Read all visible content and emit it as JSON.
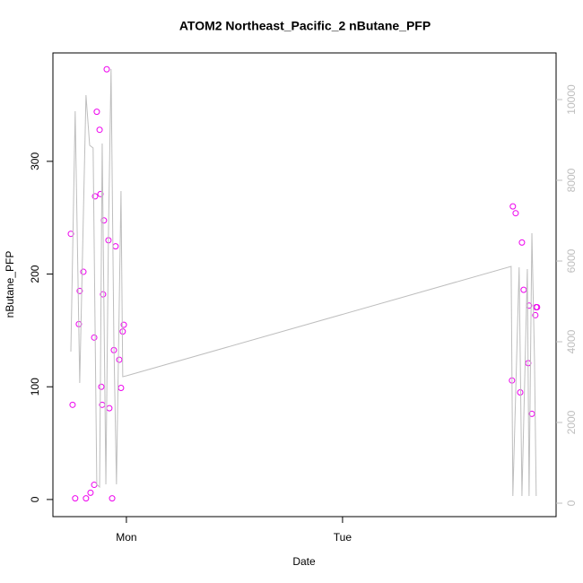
{
  "chart_data": {
    "type": "scatter",
    "title": "ATOM2 Northeast_Pacific_2 nButane_PFP",
    "x_label": "Date",
    "y_label": "nButane_PFP",
    "xlim": [
      -0.34,
      1.988
    ],
    "xticks": [
      {
        "value": 0,
        "label": "Mon"
      },
      {
        "value": 1,
        "label": "Tue"
      }
    ],
    "ylim": [
      -15.2,
      396.2
    ],
    "yticks": [
      0,
      100,
      200,
      300
    ],
    "y2lim": [
      -333,
      11156
    ],
    "y2ticks": [
      0,
      2000,
      4000,
      6000,
      8000,
      10000
    ],
    "y2_color": "#bebebe",
    "series": [
      {
        "type": "scatter",
        "color": "#ee00ee",
        "x": [
          -0.257,
          -0.249,
          -0.237,
          -0.22,
          -0.216,
          -0.199,
          -0.187,
          -0.166,
          -0.149,
          -0.149,
          -0.145,
          -0.137,
          -0.124,
          -0.12,
          -0.116,
          -0.112,
          -0.108,
          -0.104,
          -0.091,
          -0.083,
          -0.079,
          -0.066,
          -0.058,
          -0.05,
          -0.033,
          -0.025,
          -0.017,
          -0.012,
          1.784,
          1.788,
          1.801,
          1.822,
          1.83,
          1.838,
          1.859,
          1.863,
          1.876,
          1.892,
          1.896,
          1.9
        ],
        "values": [
          235.7,
          84,
          1,
          155.6,
          185,
          202,
          1,
          6,
          13,
          143.7,
          269,
          344,
          328,
          271,
          100,
          84,
          182,
          247.6,
          381.7,
          230,
          81,
          1,
          132.5,
          224.6,
          124,
          99,
          149,
          155,
          105.6,
          260,
          254,
          95,
          228,
          186,
          121,
          172,
          76,
          163.5,
          170.6,
          170.6
        ]
      },
      {
        "type": "line",
        "axis": "y2",
        "color": "#bebebe",
        "x": [
          -0.257,
          -0.237,
          -0.216,
          -0.187,
          -0.17,
          -0.154,
          -0.137,
          -0.124,
          -0.112,
          -0.095,
          -0.083,
          -0.071,
          -0.058,
          -0.046,
          -0.025,
          -0.017,
          0,
          1.78,
          1.788,
          1.817,
          1.83,
          1.855,
          1.863,
          1.876,
          1.888,
          1.896
        ],
        "values": [
          3756,
          9711,
          2978,
          10111,
          8867,
          8800,
          467,
          400,
          8911,
          467,
          6689,
          10756,
          4022,
          467,
          7733,
          3133,
          3156,
          5867,
          178,
          5844,
          178,
          5800,
          178,
          6689,
          3578,
          178
        ]
      }
    ]
  }
}
